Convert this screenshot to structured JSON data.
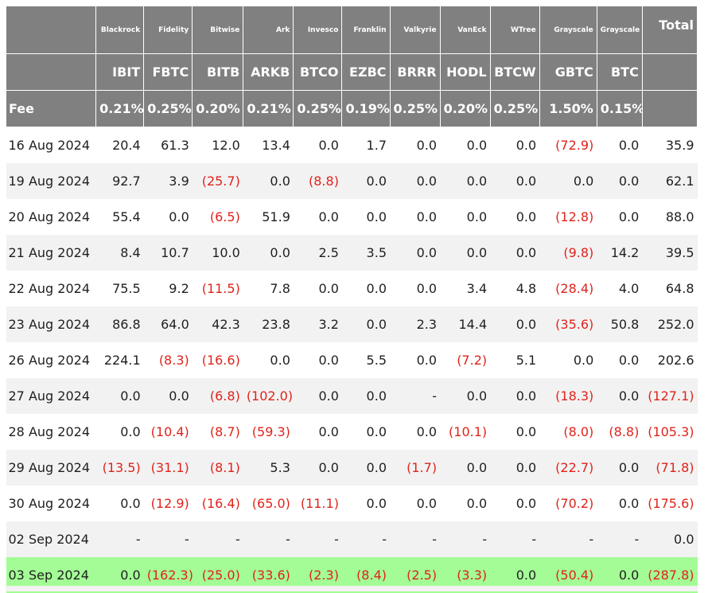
{
  "table": {
    "fee_label": "Fee",
    "total_label": "Total",
    "columns": [
      {
        "issuer": "Blackrock",
        "ticker": "IBIT",
        "fee": "0.21%"
      },
      {
        "issuer": "Fidelity",
        "ticker": "FBTC",
        "fee": "0.25%"
      },
      {
        "issuer": "Bitwise",
        "ticker": "BITB",
        "fee": "0.20%"
      },
      {
        "issuer": "Ark",
        "ticker": "ARKB",
        "fee": "0.21%"
      },
      {
        "issuer": "Invesco",
        "ticker": "BTCO",
        "fee": "0.25%"
      },
      {
        "issuer": "Franklin",
        "ticker": "EZBC",
        "fee": "0.19%"
      },
      {
        "issuer": "Valkyrie",
        "ticker": "BRRR",
        "fee": "0.25%"
      },
      {
        "issuer": "VanEck",
        "ticker": "HODL",
        "fee": "0.20%"
      },
      {
        "issuer": "WTree",
        "ticker": "BTCW",
        "fee": "0.25%"
      },
      {
        "issuer": "Grayscale",
        "ticker": "GBTC",
        "fee": "1.50%"
      },
      {
        "issuer": "Grayscale",
        "ticker": "BTC",
        "fee": "0.15%"
      }
    ],
    "rows": [
      {
        "date": "16 Aug 2024",
        "values": [
          "20.4",
          "61.3",
          "12.0",
          "13.4",
          "0.0",
          "1.7",
          "0.0",
          "0.0",
          "0.0",
          "(72.9)",
          "0.0"
        ],
        "total": "35.9"
      },
      {
        "date": "19 Aug 2024",
        "values": [
          "92.7",
          "3.9",
          "(25.7)",
          "0.0",
          "(8.8)",
          "0.0",
          "0.0",
          "0.0",
          "0.0",
          "0.0",
          "0.0"
        ],
        "total": "62.1"
      },
      {
        "date": "20 Aug 2024",
        "values": [
          "55.4",
          "0.0",
          "(6.5)",
          "51.9",
          "0.0",
          "0.0",
          "0.0",
          "0.0",
          "0.0",
          "(12.8)",
          "0.0"
        ],
        "total": "88.0"
      },
      {
        "date": "21 Aug 2024",
        "values": [
          "8.4",
          "10.7",
          "10.0",
          "0.0",
          "2.5",
          "3.5",
          "0.0",
          "0.0",
          "0.0",
          "(9.8)",
          "14.2"
        ],
        "total": "39.5"
      },
      {
        "date": "22 Aug 2024",
        "values": [
          "75.5",
          "9.2",
          "(11.5)",
          "7.8",
          "0.0",
          "0.0",
          "0.0",
          "3.4",
          "4.8",
          "(28.4)",
          "4.0"
        ],
        "total": "64.8"
      },
      {
        "date": "23 Aug 2024",
        "values": [
          "86.8",
          "64.0",
          "42.3",
          "23.8",
          "3.2",
          "0.0",
          "2.3",
          "14.4",
          "0.0",
          "(35.6)",
          "50.8"
        ],
        "total": "252.0"
      },
      {
        "date": "26 Aug 2024",
        "values": [
          "224.1",
          "(8.3)",
          "(16.6)",
          "0.0",
          "0.0",
          "5.5",
          "0.0",
          "(7.2)",
          "5.1",
          "0.0",
          "0.0"
        ],
        "total": "202.6"
      },
      {
        "date": "27 Aug 2024",
        "values": [
          "0.0",
          "0.0",
          "(6.8)",
          "(102.0)",
          "0.0",
          "0.0",
          "-",
          "0.0",
          "0.0",
          "(18.3)",
          "0.0"
        ],
        "total": "(127.1)"
      },
      {
        "date": "28 Aug 2024",
        "values": [
          "0.0",
          "(10.4)",
          "(8.7)",
          "(59.3)",
          "0.0",
          "0.0",
          "0.0",
          "(10.1)",
          "0.0",
          "(8.0)",
          "(8.8)"
        ],
        "total": "(105.3)"
      },
      {
        "date": "29 Aug 2024",
        "values": [
          "(13.5)",
          "(31.1)",
          "(8.1)",
          "5.3",
          "0.0",
          "0.0",
          "(1.7)",
          "0.0",
          "0.0",
          "(22.7)",
          "0.0"
        ],
        "total": "(71.8)"
      },
      {
        "date": "30 Aug 2024",
        "values": [
          "0.0",
          "(12.9)",
          "(16.4)",
          "(65.0)",
          "(11.1)",
          "0.0",
          "0.0",
          "0.0",
          "0.0",
          "(70.2)",
          "0.0"
        ],
        "total": "(175.6)"
      },
      {
        "date": "02 Sep 2024",
        "values": [
          "-",
          "-",
          "-",
          "-",
          "-",
          "-",
          "-",
          "-",
          "-",
          "-",
          "-"
        ],
        "total": "0.0"
      },
      {
        "date": "03 Sep 2024",
        "values": [
          "0.0",
          "(162.3)",
          "(25.0)",
          "(33.6)",
          "(2.3)",
          "(8.4)",
          "(2.5)",
          "(3.3)",
          "0.0",
          "(50.4)",
          "0.0"
        ],
        "total": "(287.8)",
        "highlight": true
      }
    ]
  },
  "colors": {
    "header_bg": "#808080",
    "header_text": "#ffffff",
    "negative_text": "#e0231b",
    "highlight_row_bg": "#a3fc95",
    "alt_row_bg": "#f2f2f2"
  }
}
